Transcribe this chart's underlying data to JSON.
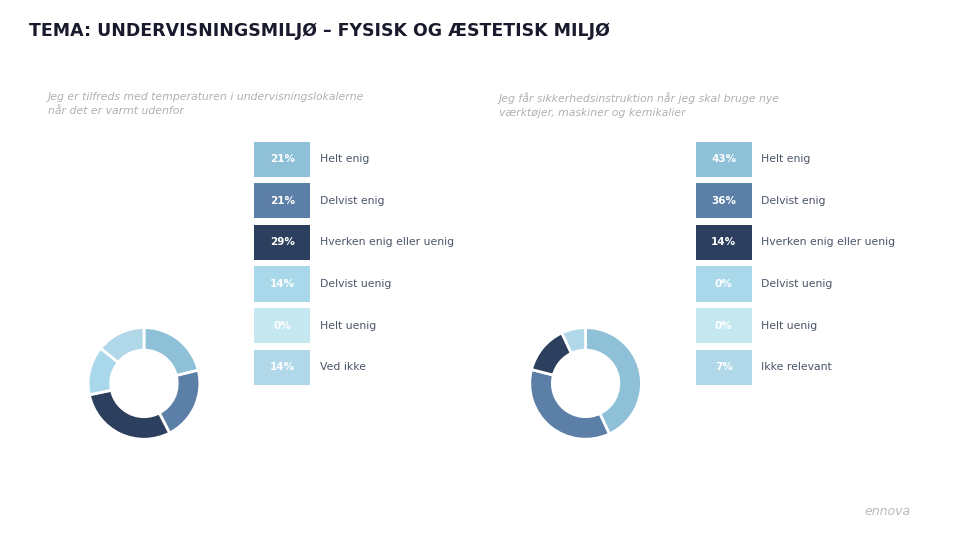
{
  "title": "TEMA: UNDERVISNINGSMILJØ – FYSISK OG ÆSTETISK MILJØ",
  "subtitle1": "Jeg er tilfreds med temperaturen i undervisningslokalerne\nnår det er varmt udenfor",
  "subtitle2": "Jeg får sikkerhedsinstruktion når jeg skal bruge nye\nværktøjer, maskiner og kemikalier",
  "chart1": {
    "values": [
      21,
      21,
      29,
      14,
      0,
      14
    ],
    "colors": [
      "#8ec0d8",
      "#5b7fa6",
      "#2d3f5e",
      "#a8d8ea",
      "#c5e8f0",
      "#b0d8e8"
    ],
    "labels": [
      "Helt enig",
      "Delvist enig",
      "Hverken enig eller uenig",
      "Delvist uenig",
      "Helt uenig",
      "Ved ikke"
    ],
    "percentages": [
      "21%",
      "21%",
      "29%",
      "14%",
      "0%",
      "14%"
    ]
  },
  "chart2": {
    "values": [
      43,
      36,
      14,
      0,
      0,
      7
    ],
    "colors": [
      "#8ec0d8",
      "#5b7fa6",
      "#2d3f5e",
      "#a8d8ea",
      "#c5e8f0",
      "#b0d8e8"
    ],
    "labels": [
      "Helt enig",
      "Delvist enig",
      "Hverken enig eller uenig",
      "Delvist uenig",
      "Helt uenig",
      "Ikke relevant"
    ],
    "percentages": [
      "43%",
      "36%",
      "14%",
      "0%",
      "0%",
      "7%"
    ]
  },
  "background_color": "#ffffff",
  "title_color": "#1a1a2e",
  "subtitle_color": "#b0b0b0",
  "legend_text_color": "#4a5568",
  "ennova_color": "#bbbbbb"
}
